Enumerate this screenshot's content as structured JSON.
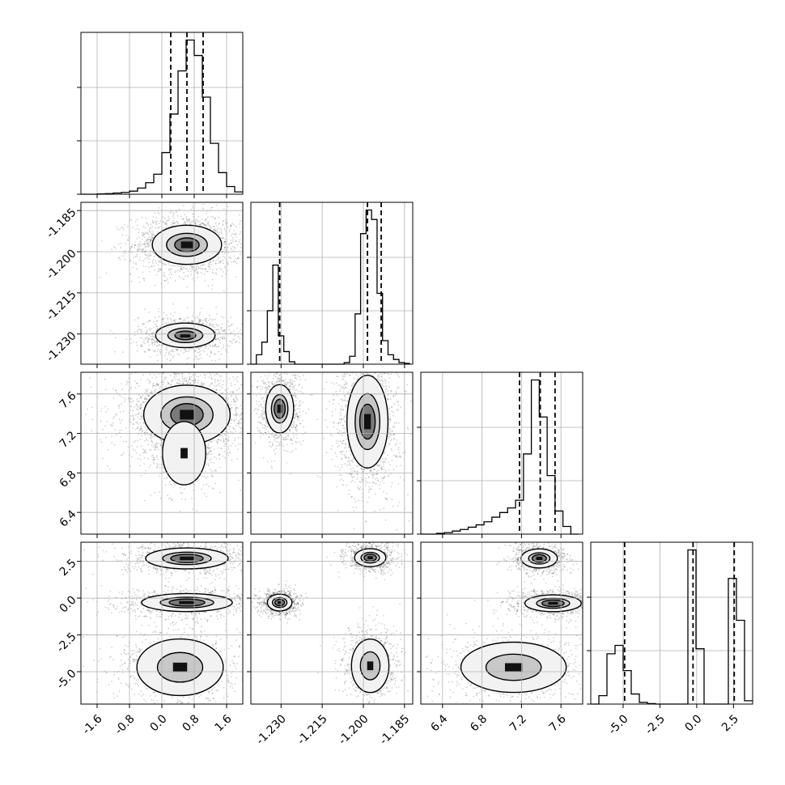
{
  "chart_data": {
    "type": "corner",
    "parameters": [
      {
        "index": 0,
        "range": [
          -2.0,
          2.0
        ],
        "ticks": [
          "-1.6",
          "-0.8",
          "0.0",
          "0.8",
          "1.6"
        ],
        "tick_values": [
          -1.6,
          -0.8,
          0.0,
          0.8,
          1.6
        ],
        "quantiles": [
          0.22,
          0.62,
          1.02
        ],
        "histogram": {
          "bin_edges": [
            -2.0,
            -1.8,
            -1.6,
            -1.4,
            -1.2,
            -1.0,
            -0.8,
            -0.6,
            -0.4,
            -0.2,
            0.0,
            0.2,
            0.4,
            0.6,
            0.8,
            1.0,
            1.2,
            1.4,
            1.6,
            1.8,
            2.0
          ],
          "counts": [
            0.0,
            0.0,
            0.2,
            0.4,
            0.8,
            1.2,
            2.0,
            4.0,
            7.5,
            13.0,
            27.0,
            52.0,
            80.0,
            100.0,
            90.0,
            63.0,
            33.0,
            14.0,
            5.0,
            1.5
          ]
        }
      },
      {
        "index": 1,
        "range": [
          -1.241,
          -1.182
        ],
        "ticks": [
          "-1.185",
          "-1.200",
          "-1.215",
          "-1.230"
        ],
        "tick_values": [
          -1.185,
          -1.2,
          -1.215,
          -1.23
        ],
        "quantiles": [
          -1.2305,
          -1.1985,
          -1.1935
        ],
        "histogram": {
          "bin_edges": [
            -1.241,
            -1.239,
            -1.237,
            -1.235,
            -1.233,
            -1.231,
            -1.229,
            -1.227,
            -1.225,
            -1.223,
            -1.221,
            -1.219,
            -1.217,
            -1.215,
            -1.213,
            -1.211,
            -1.209,
            -1.207,
            -1.205,
            -1.203,
            -1.201,
            -1.199,
            -1.197,
            -1.195,
            -1.193,
            -1.191,
            -1.189,
            -1.187,
            -1.185,
            -1.183
          ],
          "counts": [
            0.0,
            6.0,
            14.0,
            34.0,
            63.0,
            18.0,
            8.0,
            1.5,
            0.0,
            0.0,
            0.0,
            0.0,
            0.0,
            0.0,
            0.0,
            0.0,
            0.0,
            1.0,
            5.0,
            32.0,
            83.0,
            98.0,
            92.0,
            45.0,
            15.0,
            6.0,
            3.0,
            1.0,
            0.5
          ]
        }
      },
      {
        "index": 2,
        "range": [
          6.18,
          7.82
        ],
        "ticks": [
          "6.4",
          "6.8",
          "7.2",
          "7.6"
        ],
        "tick_values": [
          6.4,
          6.8,
          7.2,
          7.6
        ],
        "quantiles": [
          7.18,
          7.39,
          7.54
        ],
        "histogram": {
          "bin_edges": [
            6.18,
            6.26,
            6.34,
            6.42,
            6.5,
            6.58,
            6.66,
            6.74,
            6.82,
            6.9,
            6.98,
            7.06,
            7.14,
            7.22,
            7.3,
            7.38,
            7.46,
            7.54,
            7.62,
            7.7,
            7.78
          ],
          "counts": [
            0.0,
            0.0,
            0.5,
            1.0,
            2.0,
            3.0,
            4.5,
            6.0,
            8.0,
            11.0,
            14.0,
            17.0,
            22.0,
            52.0,
            100.0,
            76.0,
            38.0,
            15.0,
            5.0,
            0.0
          ]
        }
      },
      {
        "index": 3,
        "range": [
          -7.2,
          3.8
        ],
        "ticks": [
          "-5.0",
          "-2.5",
          "0.0",
          "2.5"
        ],
        "tick_values": [
          -5.0,
          -2.5,
          0.0,
          2.5
        ],
        "quantiles": [
          -4.9,
          -0.25,
          2.55
        ],
        "histogram": {
          "bin_edges": [
            -7.2,
            -6.65,
            -6.1,
            -5.55,
            -5.0,
            -4.45,
            -3.9,
            -3.35,
            -2.8,
            -2.25,
            -1.7,
            -1.15,
            -0.6,
            -0.05,
            0.5,
            1.05,
            1.6,
            2.15,
            2.7,
            3.25,
            3.8
          ],
          "counts": [
            0.0,
            5.0,
            30.0,
            35.0,
            20.0,
            6.0,
            1.0,
            0.3,
            0.0,
            0.0,
            0.0,
            0.0,
            92.0,
            33.0,
            0.0,
            0.0,
            0.0,
            75.0,
            50.0,
            2.0
          ]
        }
      }
    ],
    "joint_modes": [
      {
        "pair": [
          0,
          1
        ],
        "modes": [
          {
            "center": [
              0.62,
              -1.1975
            ],
            "sigma": [
              0.42,
              0.0035
            ],
            "weight": 0.62,
            "contour_levels": [
              0.9,
              0.55,
              0.25
            ]
          },
          {
            "center": [
              0.58,
              -1.2305
            ],
            "sigma": [
              0.36,
              0.0022
            ],
            "weight": 0.38,
            "contour_levels": [
              0.9,
              0.55,
              0.25
            ]
          }
        ]
      },
      {
        "pair": [
          0,
          2
        ],
        "modes": [
          {
            "center": [
              0.62,
              7.39
            ],
            "sigma": [
              0.5,
              0.14
            ],
            "weight": 0.85,
            "contour_levels": [
              0.92,
              0.6,
              0.3
            ]
          },
          {
            "center": [
              0.55,
              7.0
            ],
            "sigma": [
              0.25,
              0.15
            ],
            "weight": 0.15,
            "contour_levels": [
              0.92
            ]
          }
        ]
      },
      {
        "pair": [
          0,
          3
        ],
        "modes": [
          {
            "center": [
              0.62,
              2.7
            ],
            "sigma": [
              0.5,
              0.35
            ],
            "weight": 0.32,
            "contour_levels": [
              0.9,
              0.55,
              0.3
            ]
          },
          {
            "center": [
              0.62,
              -0.3
            ],
            "sigma": [
              0.55,
              0.3
            ],
            "weight": 0.33,
            "contour_levels": [
              0.9,
              0.55,
              0.3
            ]
          },
          {
            "center": [
              0.45,
              -4.7
            ],
            "sigma": [
              0.5,
              0.9
            ],
            "weight": 0.35,
            "contour_levels": [
              0.92,
              0.5
            ]
          }
        ]
      },
      {
        "pair": [
          1,
          2
        ],
        "modes": [
          {
            "center": [
              -1.2305,
              7.45
            ],
            "sigma": [
              0.0025,
              0.12
            ],
            "weight": 0.35,
            "contour_levels": [
              0.9,
              0.55,
              0.3
            ]
          },
          {
            "center": [
              -1.1985,
              7.32
            ],
            "sigma": [
              0.0035,
              0.22
            ],
            "weight": 0.65,
            "contour_levels": [
              0.92,
              0.6,
              0.3
            ]
          }
        ]
      },
      {
        "pair": [
          1,
          3
        ],
        "modes": [
          {
            "center": [
              -1.1975,
              2.75
            ],
            "sigma": [
              0.0028,
              0.3
            ],
            "weight": 0.32,
            "contour_levels": [
              0.9,
              0.55,
              0.3
            ]
          },
          {
            "center": [
              -1.2305,
              -0.3
            ],
            "sigma": [
              0.0022,
              0.28
            ],
            "weight": 0.32,
            "contour_levels": [
              0.9,
              0.55,
              0.3
            ]
          },
          {
            "center": [
              -1.1975,
              -4.6
            ],
            "sigma": [
              0.0032,
              0.85
            ],
            "weight": 0.36,
            "contour_levels": [
              0.92,
              0.5
            ]
          }
        ]
      },
      {
        "pair": [
          2,
          3
        ],
        "modes": [
          {
            "center": [
              7.38,
              2.7
            ],
            "sigma": [
              0.09,
              0.32
            ],
            "weight": 0.32,
            "contour_levels": [
              0.9,
              0.55,
              0.3
            ]
          },
          {
            "center": [
              7.52,
              -0.35
            ],
            "sigma": [
              0.14,
              0.28
            ],
            "weight": 0.33,
            "contour_levels": [
              0.9,
              0.55,
              0.3
            ]
          },
          {
            "center": [
              7.12,
              -4.7
            ],
            "sigma": [
              0.25,
              0.8
            ],
            "weight": 0.35,
            "contour_levels": [
              0.92,
              0.5
            ]
          }
        ]
      }
    ],
    "grid": true,
    "quantile_style": "dashed"
  }
}
